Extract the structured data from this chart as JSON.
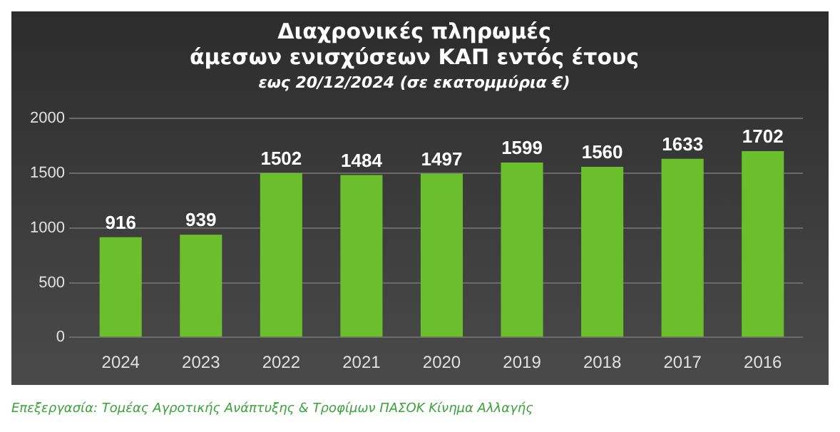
{
  "chart_data": {
    "type": "bar",
    "title": "Διαχρονικές πληρωμές\nάμεσων ενισχύσεων ΚΑΠ εντός έτους",
    "subtitle": "εως 20/12/2024 (σε εκατομμύρια €)",
    "categories": [
      "2024",
      "2023",
      "2022",
      "2021",
      "2020",
      "2019",
      "2018",
      "2017",
      "2016"
    ],
    "values": [
      916,
      939,
      1502,
      1484,
      1497,
      1599,
      1560,
      1633,
      1702
    ],
    "color": "#6cbf2c",
    "ylim": [
      0,
      2000
    ],
    "yticks": [
      0,
      500,
      1000,
      1500,
      2000
    ],
    "grid": "y",
    "data_labels": true,
    "legend": false,
    "annotations": [
      "Επεξεργασία: Τομέας Αγροτικής Ανάπτυξης & Τροφίμων ΠΑΣΟΚ Κίνημα Αλλαγής"
    ]
  }
}
